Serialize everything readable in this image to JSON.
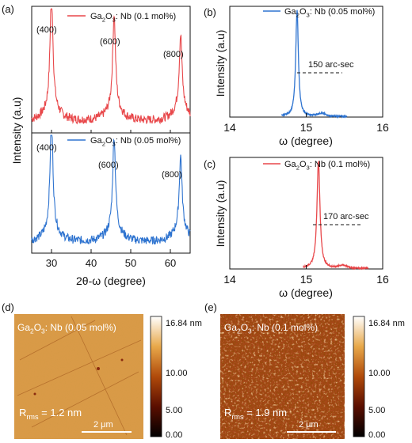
{
  "colors": {
    "red": "#e8474a",
    "blue": "#2f74d0",
    "frame": "#111111"
  },
  "panels": {
    "a": {
      "label": "(a)",
      "xlabel": "2θ-ω (degree)",
      "ylabel": "Intensity (a.u)",
      "top_legend": "Ga2O3: Nb (0.1 mol%)",
      "bottom_legend": "Ga2O3: Nb (0.05 mol%)",
      "peak_labels": [
        "(400)",
        "(600)",
        "(800)"
      ]
    },
    "b": {
      "label": "(b)",
      "legend": "Ga2O3: Nb (0.05 mol%)",
      "xlabel": "ω (degree)",
      "ylabel": "Intensity (a.u)",
      "annotation": "150 arc-sec"
    },
    "c": {
      "label": "(c)",
      "legend": "Ga2O3: Nb (0.1 mol%)",
      "xlabel": "ω (degree)",
      "ylabel": "Intensity (a.u)",
      "annotation": "170 arc-sec"
    },
    "d": {
      "label": "(d)",
      "title": "Ga2O3: Nb (0.05 mol%)",
      "rms": "Rrms = 1.2 nm",
      "scalebar": "2 μm",
      "colorbar_ticks": [
        "16.84 nm",
        "10.00",
        "5.00",
        "0.00"
      ]
    },
    "e": {
      "label": "(e)",
      "title": "Ga2O3: Nb (0.1 mol%)",
      "rms": "Rrms = 1.9 nm",
      "scalebar": "2 μm",
      "colorbar_ticks": [
        "16.84 nm",
        "10.00",
        "5.00",
        "0.00"
      ]
    }
  },
  "chart_data": [
    {
      "panel": "a",
      "type": "line",
      "xlabel": "2θ-ω (degree)",
      "ylabel": "Intensity (a.u)",
      "xlim": [
        25,
        65
      ],
      "xticks": [
        30,
        40,
        50,
        60
      ],
      "subplots": [
        {
          "name": "Ga2O3: Nb (0.1 mol%)",
          "color": "#e8474a",
          "peaks": [
            {
              "x": 30.0,
              "h": 0.93,
              "label": "(400)"
            },
            {
              "x": 45.8,
              "h": 0.73,
              "label": "(600)"
            },
            {
              "x": 62.6,
              "h": 0.57,
              "label": "(800)"
            }
          ]
        },
        {
          "name": "Ga2O3: Nb (0.05 mol%)",
          "color": "#2f74d0",
          "peaks": [
            {
              "x": 30.0,
              "h": 0.93,
              "label": "(400)"
            },
            {
              "x": 45.8,
              "h": 0.76,
              "label": "(600)"
            },
            {
              "x": 62.6,
              "h": 0.6,
              "label": "(800)"
            }
          ]
        }
      ]
    },
    {
      "panel": "b",
      "type": "line",
      "name": "Ga2O3: Nb (0.05 mol%)",
      "color": "#2f74d0",
      "xlabel": "ω (degree)",
      "ylabel": "Intensity (a.u)",
      "xlim": [
        14,
        16
      ],
      "xticks": [
        14,
        15,
        16
      ],
      "peak_center": 14.88,
      "fwhm_arcsec": 150,
      "annotation": "150 arc-sec"
    },
    {
      "panel": "c",
      "type": "line",
      "name": "Ga2O3: Nb (0.1 mol%)",
      "color": "#e8474a",
      "xlabel": "ω (degree)",
      "ylabel": "Intensity (a.u)",
      "xlim": [
        14,
        16
      ],
      "xticks": [
        14,
        15,
        16
      ],
      "peak_center": 15.16,
      "fwhm_arcsec": 170,
      "annotation": "170 arc-sec"
    },
    {
      "panel": "d",
      "type": "heatmap",
      "title": "Ga2O3: Nb (0.05 mol%)",
      "rms_nm": 1.2,
      "scalebar_um": 2,
      "colorbar_range_nm": [
        0,
        16.84
      ],
      "colorbar_ticks": [
        0.0,
        5.0,
        10.0,
        16.84
      ]
    },
    {
      "panel": "e",
      "type": "heatmap",
      "title": "Ga2O3: Nb (0.1 mol%)",
      "rms_nm": 1.9,
      "scalebar_um": 2,
      "colorbar_range_nm": [
        0,
        16.84
      ],
      "colorbar_ticks": [
        0.0,
        5.0,
        10.0,
        16.84
      ]
    }
  ]
}
